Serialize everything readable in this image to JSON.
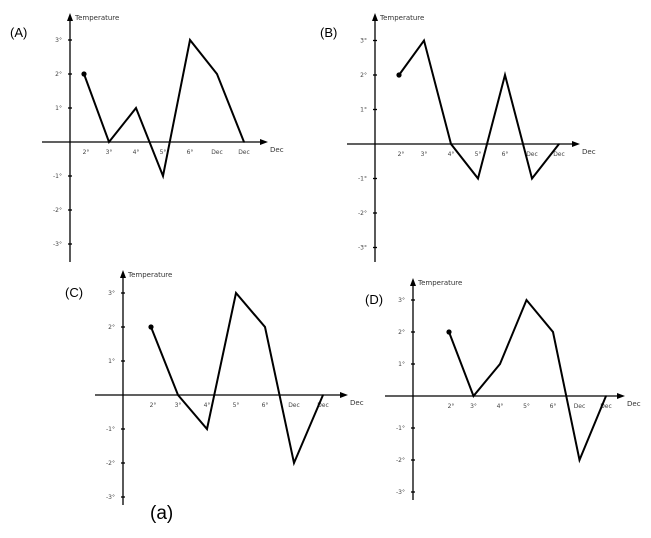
{
  "caption": "(a)",
  "chart_data": [
    {
      "type": "line",
      "panel_label": "(A)",
      "ylabel": "Temperature",
      "xlabel": "Dec",
      "yticks": [
        "3°",
        "2°",
        "1°",
        "-1°",
        "-2°",
        "-3°"
      ],
      "ytick_values": [
        3,
        2,
        1,
        -1,
        -2,
        -3
      ],
      "xticks": [
        "2°",
        "3°",
        "4°",
        "5°",
        "6°",
        "Dec",
        "Dec"
      ],
      "values": [
        2,
        0,
        1,
        -1,
        3,
        2,
        0
      ],
      "ylim": [
        -3,
        3
      ]
    },
    {
      "type": "line",
      "panel_label": "(B)",
      "ylabel": "Temperature",
      "xlabel": "Dec",
      "yticks": [
        "3°",
        "2°",
        "1°",
        "-1°",
        "-2°",
        "-3°"
      ],
      "ytick_values": [
        3,
        2,
        1,
        -1,
        -2,
        -3
      ],
      "xticks": [
        "2°",
        "3°",
        "4°",
        "5°",
        "6°",
        "Dec",
        "Dec"
      ],
      "values": [
        2,
        3,
        0,
        -1,
        2,
        -1,
        0
      ],
      "ylim": [
        -3,
        3
      ]
    },
    {
      "type": "line",
      "panel_label": "(C)",
      "ylabel": "Temperature",
      "xlabel": "Dec",
      "yticks": [
        "3°",
        "2°",
        "1°",
        "-1°",
        "-2°",
        "-3°"
      ],
      "ytick_values": [
        3,
        2,
        1,
        -1,
        -2,
        -3
      ],
      "xticks": [
        "2°",
        "3°",
        "4°",
        "5°",
        "6°",
        "Dec",
        "Dec"
      ],
      "values": [
        2,
        0,
        -1,
        3,
        2,
        -2,
        0
      ],
      "ylim": [
        -3,
        3
      ]
    },
    {
      "type": "line",
      "panel_label": "(D)",
      "ylabel": "Temperature",
      "xlabel": "Dec",
      "yticks": [
        "3°",
        "2°",
        "1°",
        "-1°",
        "-2°",
        "-3°"
      ],
      "ytick_values": [
        3,
        2,
        1,
        -1,
        -2,
        -3
      ],
      "xticks": [
        "2°",
        "3°",
        "4°",
        "5°",
        "6°",
        "Dec",
        "Dec"
      ],
      "values": [
        2,
        0,
        1,
        3,
        2,
        -2,
        0
      ],
      "ylim": [
        -3,
        3
      ]
    }
  ]
}
